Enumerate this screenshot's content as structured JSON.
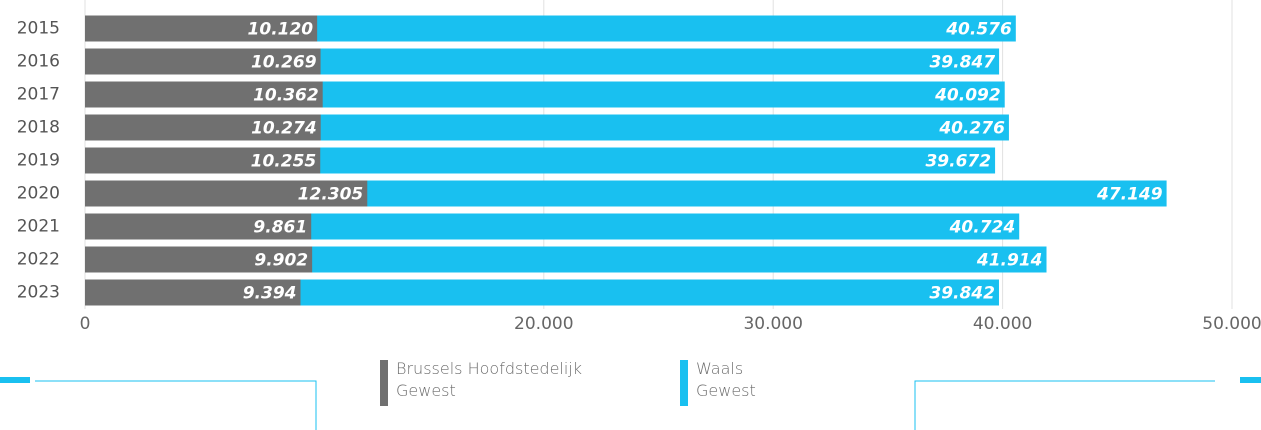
{
  "chart_data": {
    "type": "bar",
    "orientation": "horizontal",
    "overlap": true,
    "categories": [
      "2015",
      "2016",
      "2017",
      "2018",
      "2019",
      "2020",
      "2021",
      "2022",
      "2023"
    ],
    "series": [
      {
        "name": "Brussels Hoofdstedelijk Gewest",
        "color": "#707070",
        "values": [
          10120,
          10269,
          10362,
          10274,
          10255,
          12305,
          9861,
          9902,
          9394
        ],
        "value_labels": [
          "10.120",
          "10.269",
          "10.362",
          "10.274",
          "10.255",
          "12.305",
          "9.861",
          "9.902",
          "9.394"
        ]
      },
      {
        "name": "Waals Gewest",
        "color": "#19c0f0",
        "values": [
          40576,
          39847,
          40092,
          40276,
          39672,
          47149,
          40724,
          41914,
          39842
        ],
        "value_labels": [
          "40.576",
          "39.847",
          "40.092",
          "40.276",
          "39.672",
          "47.149",
          "40.724",
          "41.914",
          "39.842"
        ]
      }
    ],
    "xlim": [
      0,
      50000
    ],
    "xticks": [
      0,
      {
        "value": 20000,
        "label": "20.000"
      },
      {
        "value": 30000,
        "label": "30.000"
      },
      {
        "value": 40000,
        "label": "40.000"
      },
      {
        "value": 50000,
        "label": "50.000"
      }
    ],
    "grid": true
  }
}
